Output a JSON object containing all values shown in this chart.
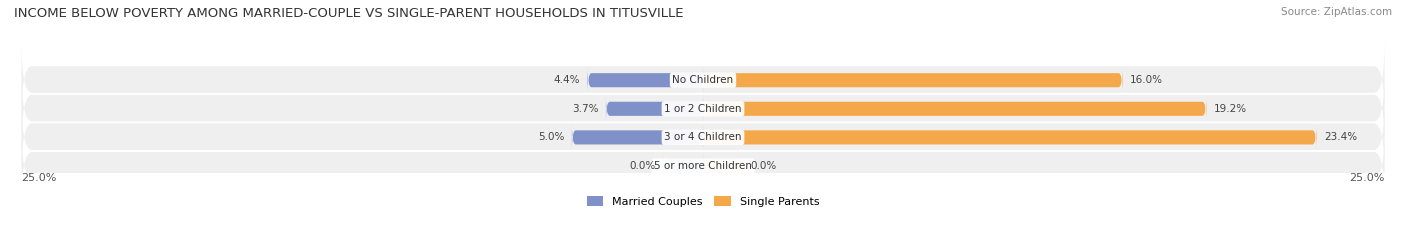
{
  "title": "INCOME BELOW POVERTY AMONG MARRIED-COUPLE VS SINGLE-PARENT HOUSEHOLDS IN TITUSVILLE",
  "source": "Source: ZipAtlas.com",
  "categories": [
    "No Children",
    "1 or 2 Children",
    "3 or 4 Children",
    "5 or more Children"
  ],
  "married_values": [
    4.4,
    3.7,
    5.0,
    0.0
  ],
  "single_values": [
    16.0,
    19.2,
    23.4,
    0.0
  ],
  "married_color": "#8090C8",
  "single_color": "#F5A84A",
  "married_color_light": "#B0BEDE",
  "single_color_light": "#F9CFA0",
  "bg_row_color": "#EFEFEF",
  "bar_bg_color": "#DCDCDC",
  "x_max": 25.0,
  "title_fontsize": 9.5,
  "source_fontsize": 7.5,
  "label_fontsize": 7.5,
  "axis_label_fontsize": 8.0,
  "legend_fontsize": 8.0
}
